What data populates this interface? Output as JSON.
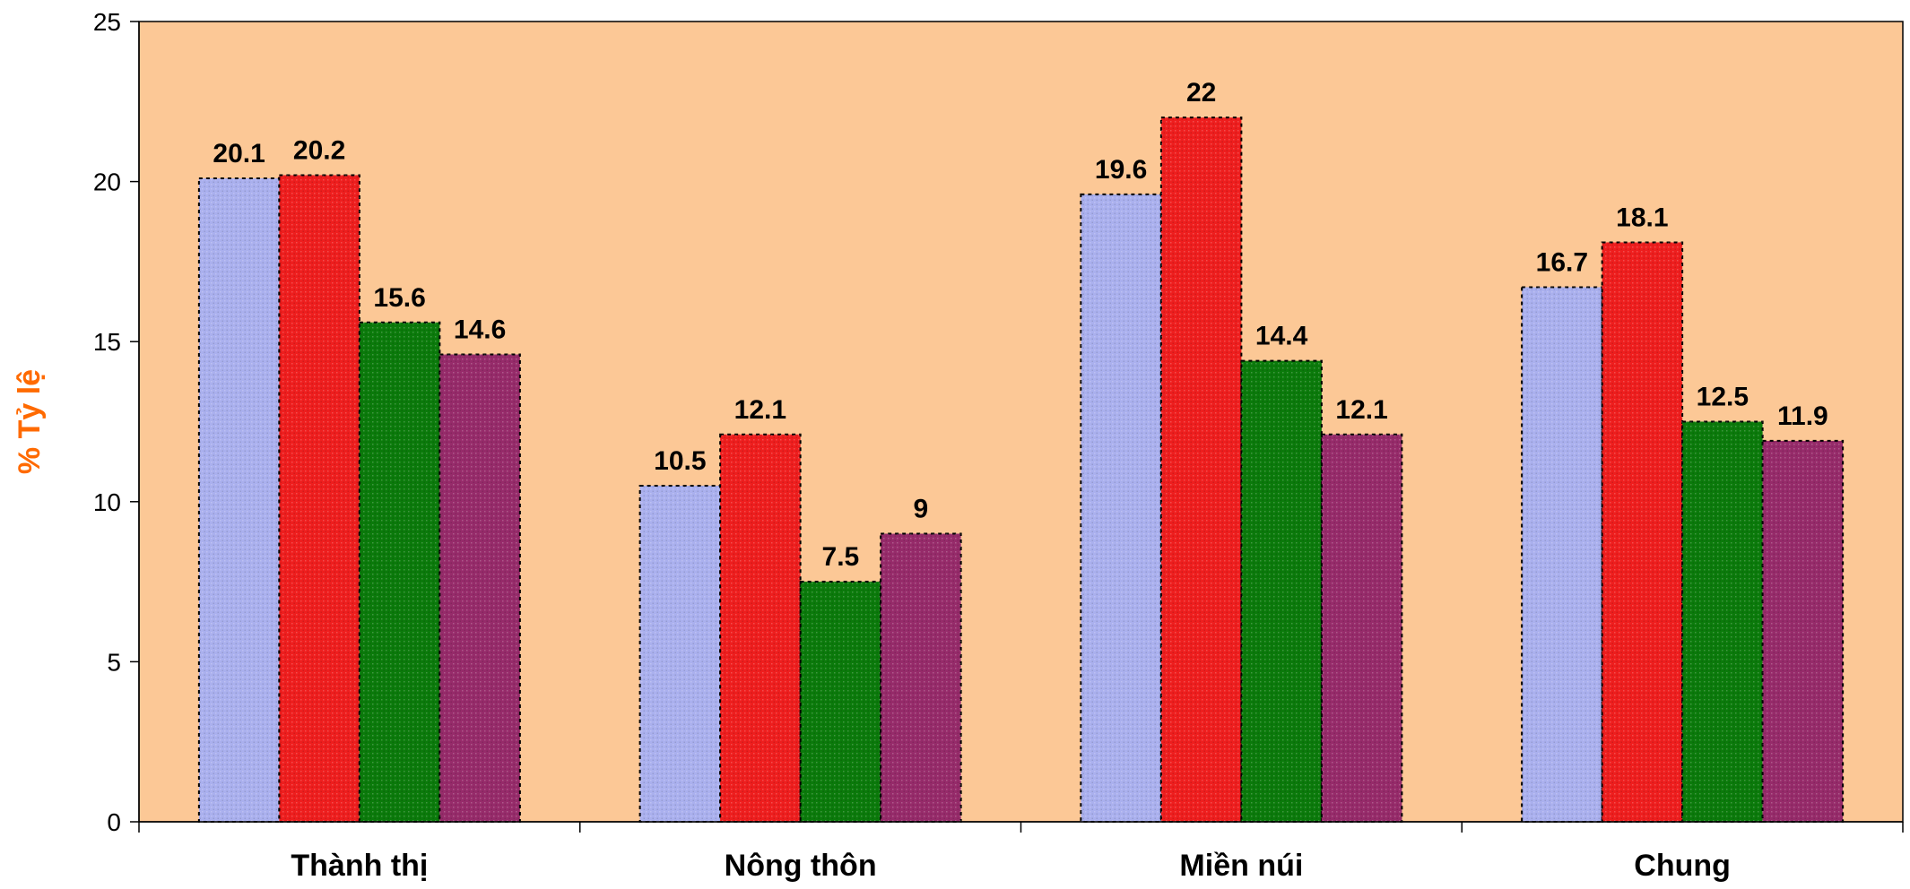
{
  "chart_data": {
    "type": "bar",
    "title": "",
    "xlabel": "",
    "ylabel": "% Tỷ lệ",
    "ylim": [
      0,
      25
    ],
    "yticks": [
      0,
      5,
      10,
      15,
      20,
      25
    ],
    "categories": [
      "Thành thị",
      "Nông thôn",
      "Miền núi",
      "Chung"
    ],
    "series": [
      {
        "values": [
          20.1,
          10.5,
          19.6,
          16.7
        ],
        "color": "#aab0ee"
      },
      {
        "values": [
          20.2,
          12.1,
          22,
          18.1
        ],
        "color": "#ee1e1e"
      },
      {
        "values": [
          15.6,
          7.5,
          14.4,
          12.5
        ],
        "color": "#0b7a0b"
      },
      {
        "values": [
          14.6,
          9,
          12.1,
          11.9
        ],
        "color": "#962b6a"
      }
    ],
    "grid": false,
    "legend": "none",
    "plot_background": "#fcc896",
    "ylabel_color": "#ff6a00",
    "bar_border": "dotted"
  }
}
